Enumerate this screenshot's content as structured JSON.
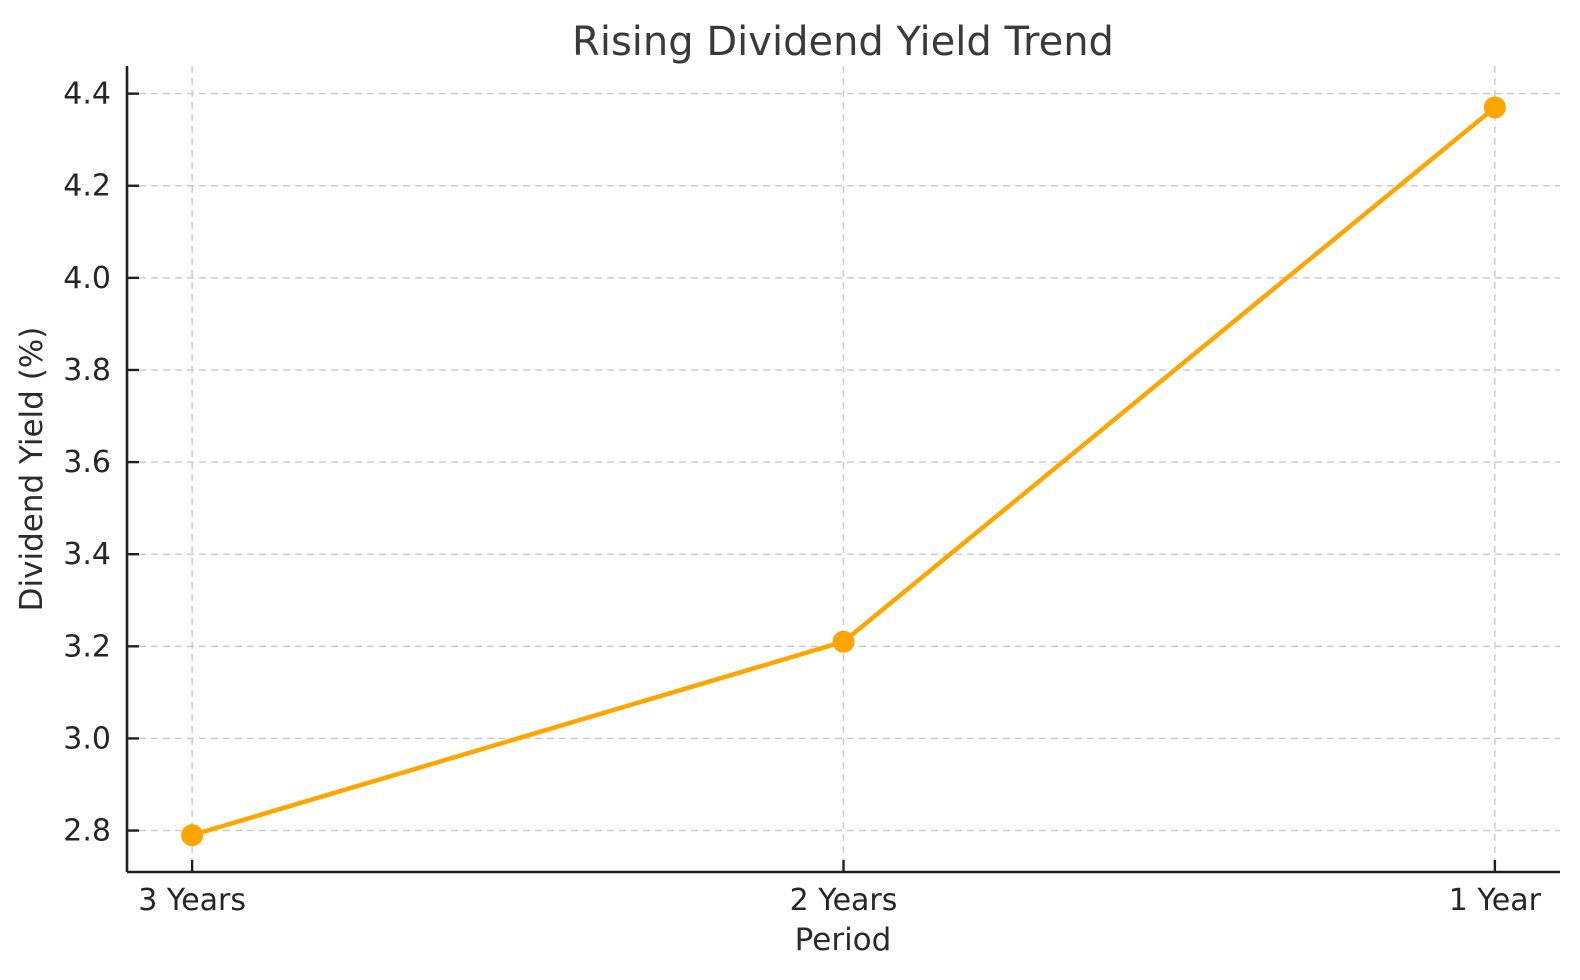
{
  "chart_data": {
    "type": "line",
    "title": "Rising Dividend Yield Trend",
    "xlabel": "Period",
    "ylabel": "Dividend Yield (%)",
    "categories": [
      "3 Years",
      "2 Years",
      "1 Year"
    ],
    "values": [
      2.79,
      3.21,
      4.37
    ],
    "series_name": "Dividend Yield",
    "yticks": [
      2.8,
      3.0,
      3.2,
      3.4,
      3.6,
      3.8,
      4.0,
      4.2,
      4.4
    ],
    "ylim": [
      2.71,
      4.46
    ],
    "grid": true,
    "grid_style": "dashed",
    "legend": "none",
    "marker": "circle"
  },
  "colors": {
    "line": "#FFA500",
    "marker": "#FFA500",
    "grid": "#cccccc",
    "spine": "#1f1f1f",
    "tick": "#1f1f1f",
    "tick_text": "#262626",
    "title_text": "#3a3a3a",
    "background": "#ffffff"
  }
}
